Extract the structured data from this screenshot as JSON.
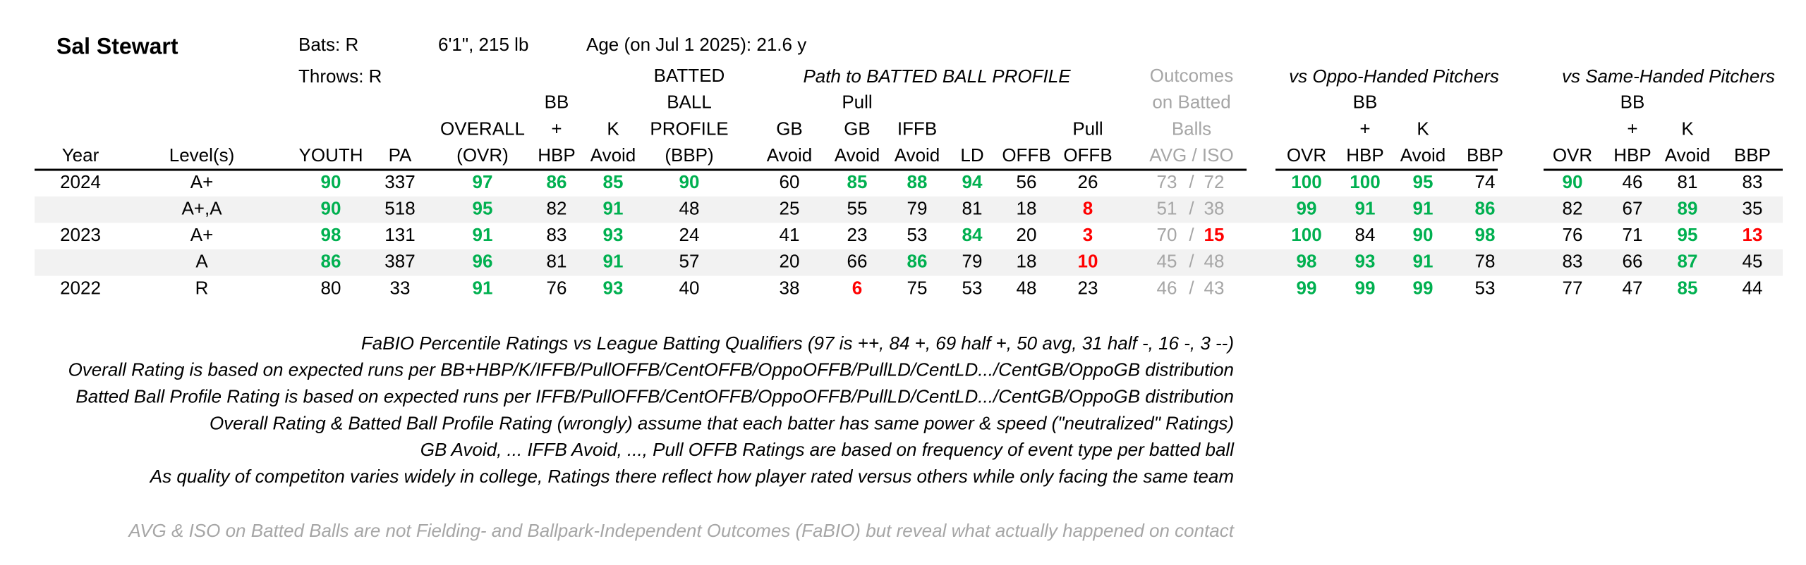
{
  "header": {
    "name": "Sal Stewart",
    "bats": "Bats: R",
    "throws": "Throws: R",
    "height_weight": "6'1\", 215 lb",
    "age": "Age (on Jul 1 2025): 21.6 y"
  },
  "groups": [
    "Path to BATTED BALL PROFILE",
    "vs Oppo-Handed Pitchers",
    "vs Same-Handed Pitchers"
  ],
  "columns": [
    [
      "Year"
    ],
    [
      "Level(s)"
    ],
    [
      "YOUTH"
    ],
    [
      "PA"
    ],
    [
      "OVERALL",
      "(OVR)"
    ],
    [
      "BB",
      "+",
      "HBP"
    ],
    [
      "K",
      "Avoid"
    ],
    [
      "BATTED",
      "BALL",
      "PROFILE",
      "(BBP)"
    ],
    [
      "GB",
      "Avoid"
    ],
    [
      "Pull",
      "GB",
      "Avoid"
    ],
    [
      "IFFB",
      "Avoid"
    ],
    [
      "LD"
    ],
    [
      "OFFB"
    ],
    [
      "Pull",
      "OFFB"
    ],
    [
      "Outcomes",
      "on Batted",
      "Balls",
      "AVG / ISO"
    ],
    [
      "OVR"
    ],
    [
      "BB",
      "+",
      "HBP"
    ],
    [
      "K",
      "Avoid"
    ],
    [
      "BBP"
    ],
    [
      "OVR"
    ],
    [
      "BB",
      "+",
      "HBP"
    ],
    [
      "K",
      "Avoid"
    ],
    [
      "BBP"
    ]
  ],
  "separator": "/",
  "outcome_color": "#a6a6a6",
  "rows": [
    {
      "year": 2024,
      "level": "A+",
      "cells": [
        {
          "value": 90,
          "color": "#00b050"
        },
        337,
        {
          "value": 97,
          "color": "#00b050"
        },
        {
          "value": 86,
          "color": "#00b050"
        },
        {
          "value": 85,
          "color": "#00b050"
        },
        {
          "value": 90,
          "color": "#00b050"
        },
        60,
        {
          "value": 85,
          "color": "#00b050"
        },
        {
          "value": 88,
          "color": "#00b050"
        },
        {
          "value": 94,
          "color": "#00b050"
        },
        56,
        26,
        73,
        72,
        {
          "value": 100,
          "color": "#00b050"
        },
        {
          "value": 100,
          "color": "#00b050"
        },
        {
          "value": 95,
          "color": "#00b050"
        },
        74,
        {
          "value": 90,
          "color": "#00b050"
        },
        46,
        81,
        83
      ]
    },
    {
      "year": null,
      "level": "A+,A",
      "shaded": true,
      "cells": [
        {
          "value": 90,
          "color": "#00b050"
        },
        518,
        {
          "value": 95,
          "color": "#00b050"
        },
        82,
        {
          "value": 91,
          "color": "#00b050"
        },
        48,
        25,
        55,
        79,
        81,
        18,
        {
          "value": 8,
          "color": "#ff0000"
        },
        51,
        38,
        {
          "value": 99,
          "color": "#00b050"
        },
        {
          "value": 91,
          "color": "#00b050"
        },
        {
          "value": 91,
          "color": "#00b050"
        },
        {
          "value": 86,
          "color": "#00b050"
        },
        82,
        67,
        {
          "value": 89,
          "color": "#00b050"
        },
        35
      ]
    },
    {
      "year": 2023,
      "level": "A+",
      "cells": [
        {
          "value": 98,
          "color": "#00b050"
        },
        131,
        {
          "value": 91,
          "color": "#00b050"
        },
        83,
        {
          "value": 93,
          "color": "#00b050"
        },
        24,
        41,
        23,
        53,
        {
          "value": 84,
          "color": "#00b050"
        },
        20,
        {
          "value": 3,
          "color": "#ff0000"
        },
        70,
        {
          "value": 15,
          "color": "#ff0000"
        },
        {
          "value": 100,
          "color": "#00b050"
        },
        84,
        {
          "value": 90,
          "color": "#00b050"
        },
        {
          "value": 98,
          "color": "#00b050"
        },
        76,
        71,
        {
          "value": 95,
          "color": "#00b050"
        },
        {
          "value": 13,
          "color": "#ff0000"
        }
      ]
    },
    {
      "year": null,
      "level": "A",
      "shaded": true,
      "cells": [
        {
          "value": 86,
          "color": "#00b050"
        },
        387,
        {
          "value": 96,
          "color": "#00b050"
        },
        81,
        {
          "value": 91,
          "color": "#00b050"
        },
        57,
        20,
        66,
        {
          "value": 86,
          "color": "#00b050"
        },
        79,
        18,
        {
          "value": 10,
          "color": "#ff0000"
        },
        45,
        48,
        {
          "value": 98,
          "color": "#00b050"
        },
        {
          "value": 93,
          "color": "#00b050"
        },
        {
          "value": 91,
          "color": "#00b050"
        },
        78,
        83,
        66,
        {
          "value": 87,
          "color": "#00b050"
        },
        45
      ]
    },
    {
      "year": 2022,
      "level": "R",
      "cells": [
        80,
        33,
        {
          "value": 91,
          "color": "#00b050"
        },
        76,
        {
          "value": 93,
          "color": "#00b050"
        },
        40,
        38,
        {
          "value": 6,
          "color": "#ff0000"
        },
        75,
        53,
        48,
        23,
        46,
        43,
        {
          "value": 99,
          "color": "#00b050"
        },
        {
          "value": 99,
          "color": "#00b050"
        },
        {
          "value": 99,
          "color": "#00b050"
        },
        53,
        77,
        47,
        {
          "value": 85,
          "color": "#00b050"
        },
        44
      ]
    }
  ],
  "notes": [
    "FaBIO Percentile Ratings vs League Batting Qualifiers (97 is ++, 84 +, 69 half +, 50 avg, 31 half -, 16 -, 3 --)",
    "Overall Rating is based on expected runs per BB+HBP/K/IFFB/PullOFFB/CentOFFB/OppoOFFB/PullLD/CentLD.../CentGB/OppoGB distribution",
    "Batted Ball Profile Rating is based on expected runs per IFFB/PullOFFB/CentOFFB/OppoOFFB/PullLD/CentLD.../CentGB/OppoGB distribution",
    "Overall Rating & Batted Ball Profile Rating (wrongly) assume that each batter has same power & speed (\"neutralized\" Ratings)",
    "GB Avoid, ... IFFB Avoid, ..., Pull OFFB Ratings are based on frequency of event type per batted ball",
    "As quality of competiton varies widely in college, Ratings there reflect how player rated versus others while only facing the same team"
  ],
  "footnote": "AVG & ISO on Batted Balls are not Fielding- and Ballpark-Independent Outcomes (FaBIO) but reveal what actually happened on contact"
}
